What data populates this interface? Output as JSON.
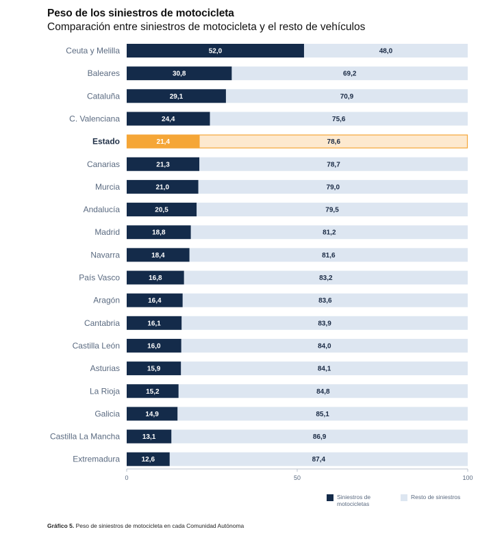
{
  "header": {
    "title": "Peso de los siniestros de motocicleta",
    "subtitle": "Comparación entre siniestros de motocicleta y el resto de vehículos"
  },
  "legend": {
    "moto_label": "Siniestros de motocicletas",
    "resto_label": "Resto de siniestros"
  },
  "caption": {
    "prefix": "Gráfico 5.",
    "text": " Peso de siniestros de motocicleta en cada Comunidad Autónoma"
  },
  "colors": {
    "moto": "#142b4a",
    "resto": "#dde6f1",
    "highlight_moto": "#f5a637",
    "highlight_resto": "#fde9cf",
    "highlight_border": "#f5a637",
    "label_text": "#5a6a80"
  },
  "chart_data": {
    "type": "bar",
    "orientation": "horizontal",
    "stacked": true,
    "categories": [
      "Ceuta y Melilla",
      "Baleares",
      "Cataluña",
      "C. Valenciana",
      "Estado",
      "Canarias",
      "Murcia",
      "Andalucía",
      "Madrid",
      "Navarra",
      "País Vasco",
      "Aragón",
      "Cantabria",
      "Castilla León",
      "Asturias",
      "La Rioja",
      "Galicia",
      "Castilla La Mancha",
      "Extremadura"
    ],
    "highlight": "Estado",
    "series": [
      {
        "name": "Siniestros de motocicletas",
        "values": [
          52.0,
          30.8,
          29.1,
          24.4,
          21.4,
          21.3,
          21.0,
          20.5,
          18.8,
          18.4,
          16.8,
          16.4,
          16.1,
          16.0,
          15.9,
          15.2,
          14.9,
          13.1,
          12.6
        ]
      },
      {
        "name": "Resto de siniestros",
        "values": [
          48.0,
          69.2,
          70.9,
          75.6,
          78.6,
          78.7,
          79.0,
          79.5,
          81.2,
          81.6,
          83.2,
          83.6,
          83.9,
          84.0,
          84.1,
          84.8,
          85.1,
          86.9,
          87.4
        ]
      }
    ],
    "value_labels": [
      [
        "52,0",
        "48,0"
      ],
      [
        "30,8",
        "69,2"
      ],
      [
        "29,1",
        "70,9"
      ],
      [
        "24,4",
        "75,6"
      ],
      [
        "21,4",
        "78,6"
      ],
      [
        "21,3",
        "78,7"
      ],
      [
        "21,0",
        "79,0"
      ],
      [
        "20,5",
        "79,5"
      ],
      [
        "18,8",
        "81,2"
      ],
      [
        "18,4",
        "81,6"
      ],
      [
        "16,8",
        "83,2"
      ],
      [
        "16,4",
        "83,6"
      ],
      [
        "16,1",
        "83,9"
      ],
      [
        "16,0",
        "84,0"
      ],
      [
        "15,9",
        "84,1"
      ],
      [
        "15,2",
        "84,8"
      ],
      [
        "14,9",
        "85,1"
      ],
      [
        "13,1",
        "86,9"
      ],
      [
        "12,6",
        "87,4"
      ]
    ],
    "xlim": [
      0,
      100
    ],
    "xticks": [
      0,
      50,
      100
    ],
    "grid": false,
    "legend_position": "bottom-right"
  }
}
